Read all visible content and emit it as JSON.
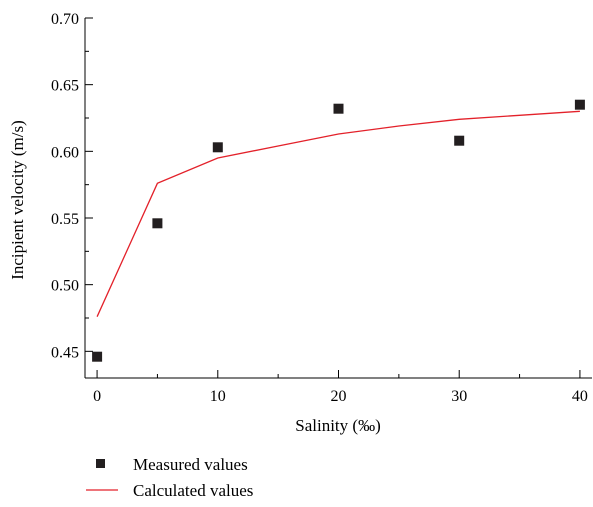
{
  "chart_data": {
    "type": "scatter",
    "title": "",
    "xlabel": "Salinity (‰)",
    "ylabel": "Incipient velocity (m/s)",
    "xlim": [
      -1,
      41
    ],
    "ylim": [
      0.43,
      0.7
    ],
    "x_ticks": [
      0,
      10,
      20,
      30,
      40
    ],
    "y_ticks": [
      0.45,
      0.5,
      0.55,
      0.6,
      0.65,
      0.7
    ],
    "x_minor_step": 5,
    "y_minor_step": 0.025,
    "grid": false,
    "legend_position": "bottom-left",
    "series": [
      {
        "name": "Measured values",
        "kind": "scatter",
        "marker": "square",
        "color": "#231f20",
        "x": [
          0,
          5,
          10,
          20,
          30,
          40
        ],
        "y": [
          0.446,
          0.546,
          0.603,
          0.632,
          0.608,
          0.635
        ]
      },
      {
        "name": "Calculated values",
        "kind": "line",
        "color": "#e3212a",
        "x": [
          0,
          5,
          10,
          15,
          20,
          25,
          30,
          35,
          40
        ],
        "y": [
          0.476,
          0.576,
          0.595,
          0.604,
          0.613,
          0.619,
          0.624,
          0.627,
          0.63
        ]
      }
    ]
  }
}
